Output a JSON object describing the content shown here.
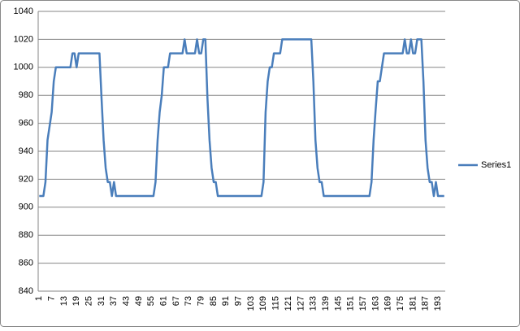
{
  "chart_data": {
    "type": "line",
    "categories": [
      1,
      null,
      null,
      null,
      null,
      null,
      7,
      null,
      null,
      null,
      null,
      null,
      13,
      null,
      null,
      null,
      null,
      null,
      19,
      null,
      null,
      null,
      null,
      null,
      25,
      null,
      null,
      null,
      null,
      null,
      31,
      null,
      null,
      null,
      null,
      null,
      37,
      null,
      null,
      null,
      null,
      null,
      43,
      null,
      null,
      null,
      null,
      null,
      49,
      null,
      null,
      null,
      null,
      null,
      55,
      null,
      null,
      null,
      null,
      null,
      61,
      null,
      null,
      null,
      null,
      null,
      67,
      null,
      null,
      null,
      null,
      null,
      73,
      null,
      null,
      null,
      null,
      null,
      79,
      null,
      null,
      null,
      null,
      null,
      85,
      null,
      null,
      null,
      null,
      null,
      91,
      null,
      null,
      null,
      null,
      null,
      97,
      null,
      null,
      null,
      null,
      null,
      103,
      null,
      null,
      null,
      null,
      null,
      109,
      null,
      null,
      null,
      null,
      null,
      115,
      null,
      null,
      null,
      null,
      null,
      121,
      null,
      null,
      null,
      null,
      null,
      127,
      null,
      null,
      null,
      null,
      null,
      133,
      null,
      null,
      null,
      null,
      null,
      139,
      null,
      null,
      null,
      null,
      null,
      145,
      null,
      null,
      null,
      null,
      null,
      151,
      null,
      null,
      null,
      null,
      null,
      157,
      null,
      null,
      null,
      null,
      null,
      163,
      null,
      null,
      null,
      null,
      null,
      169,
      null,
      null,
      null,
      null,
      null,
      175,
      null,
      null,
      null,
      null,
      null,
      181,
      null,
      null,
      null,
      null,
      null,
      187,
      null,
      null,
      null,
      null,
      null,
      193,
      null,
      null,
      null
    ],
    "series": [
      {
        "name": "Series1",
        "color": "#4a7ebb",
        "values": [
          908,
          908,
          908,
          918,
          948,
          958,
          968,
          990,
          1000,
          1000,
          1000,
          1000,
          1000,
          1000,
          1000,
          1000,
          1010,
          1010,
          1000,
          1010,
          1010,
          1010,
          1010,
          1010,
          1010,
          1010,
          1010,
          1010,
          1010,
          1010,
          978,
          948,
          928,
          918,
          918,
          908,
          918,
          908,
          908,
          908,
          908,
          908,
          908,
          908,
          908,
          908,
          908,
          908,
          908,
          908,
          908,
          908,
          908,
          908,
          908,
          908,
          918,
          948,
          968,
          980,
          1000,
          1000,
          1000,
          1010,
          1010,
          1010,
          1010,
          1010,
          1010,
          1010,
          1020,
          1010,
          1010,
          1010,
          1010,
          1010,
          1020,
          1010,
          1010,
          1020,
          1020,
          978,
          948,
          928,
          918,
          918,
          908,
          908,
          908,
          908,
          908,
          908,
          908,
          908,
          908,
          908,
          908,
          908,
          908,
          908,
          908,
          908,
          908,
          908,
          908,
          908,
          908,
          908,
          918,
          968,
          990,
          1000,
          1000,
          1010,
          1010,
          1010,
          1010,
          1020,
          1020,
          1020,
          1020,
          1020,
          1020,
          1020,
          1020,
          1020,
          1020,
          1020,
          1020,
          1020,
          1020,
          1020,
          990,
          948,
          928,
          918,
          918,
          908,
          908,
          908,
          908,
          908,
          908,
          908,
          908,
          908,
          908,
          908,
          908,
          908,
          908,
          908,
          908,
          908,
          908,
          908,
          908,
          908,
          908,
          908,
          918,
          948,
          970,
          990,
          990,
          1000,
          1010,
          1010,
          1010,
          1010,
          1010,
          1010,
          1010,
          1010,
          1010,
          1010,
          1020,
          1010,
          1010,
          1020,
          1010,
          1010,
          1020,
          1020,
          1020,
          990,
          948,
          928,
          918,
          918,
          908,
          918,
          908,
          908,
          908,
          908
        ]
      }
    ],
    "ylim": [
      840,
      1040
    ],
    "yticks": [
      840,
      860,
      880,
      900,
      920,
      940,
      960,
      980,
      1000,
      1020,
      1040
    ],
    "grid": true,
    "legend": "right"
  }
}
